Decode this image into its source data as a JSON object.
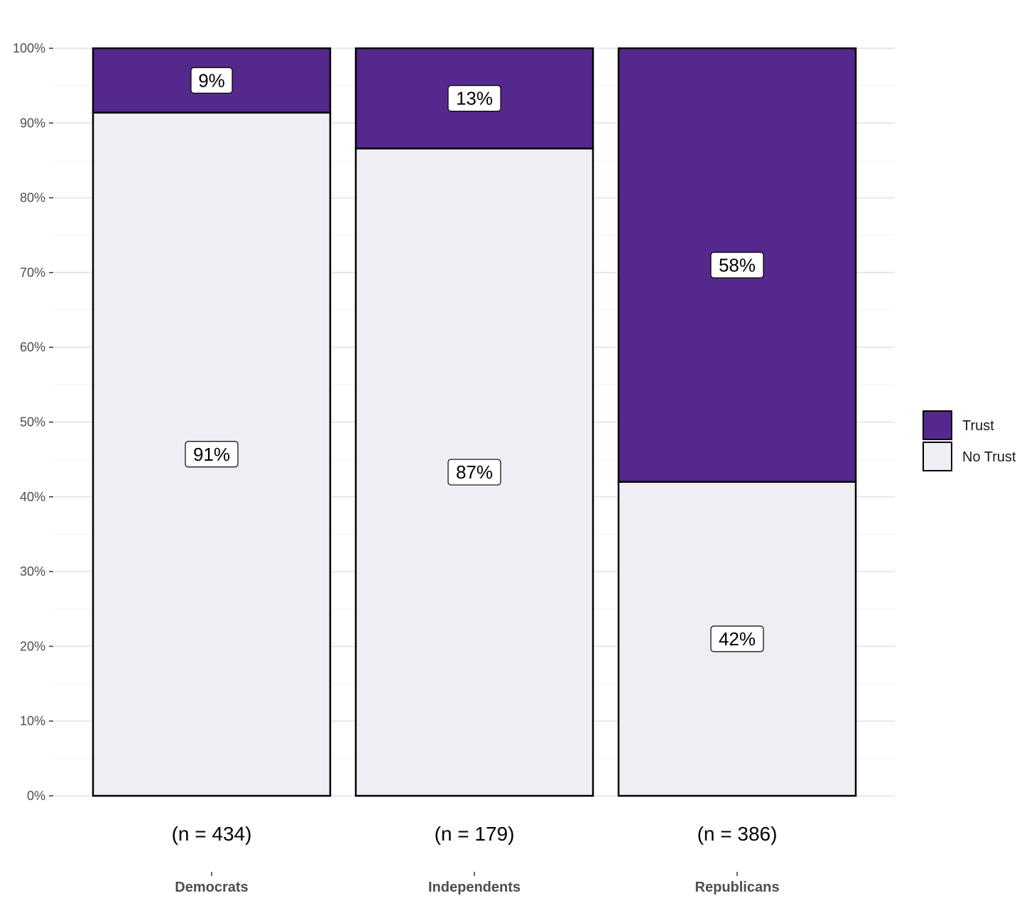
{
  "colors": {
    "trust": "#55288D",
    "no_trust": "#EFEEF5",
    "bar_outline": "#000000"
  },
  "chart_data": {
    "type": "bar",
    "stacked": true,
    "categories": [
      "Democrats",
      "Independents",
      "Republicans"
    ],
    "sample_sizes": [
      "(n = 434)",
      "(n = 179)",
      "(n = 386)"
    ],
    "series": [
      {
        "name": "No Trust",
        "values": [
          91.4,
          86.6,
          42.0
        ],
        "labels": [
          "91%",
          "87%",
          "42%"
        ]
      },
      {
        "name": "Trust",
        "values": [
          8.6,
          13.4,
          58.0
        ],
        "labels": [
          "9%",
          "13%",
          "58%"
        ]
      }
    ],
    "ylim": [
      0,
      100
    ],
    "yticks": [
      "0%",
      "10%",
      "20%",
      "30%",
      "40%",
      "50%",
      "60%",
      "70%",
      "80%",
      "90%",
      "100%"
    ],
    "grid": true,
    "legend_position": "right",
    "legend": [
      "Trust",
      "No Trust"
    ]
  }
}
